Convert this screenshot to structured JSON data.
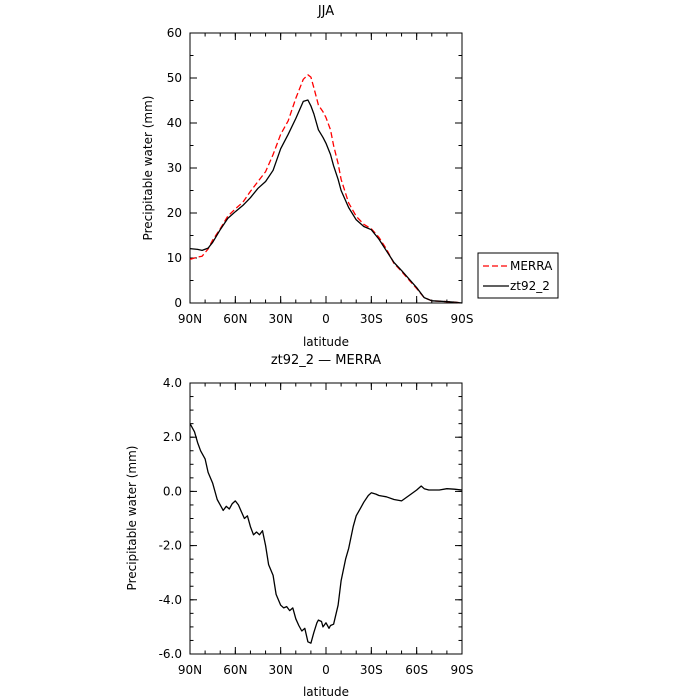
{
  "chart_data": [
    {
      "type": "line",
      "title": "JJA",
      "xlabel": "latitude",
      "ylabel": "Precipitable water (mm)",
      "xlim": [
        90,
        -90
      ],
      "ylim": [
        0,
        60
      ],
      "x_ticks": [
        {
          "value": 90,
          "label": "90N"
        },
        {
          "value": 60,
          "label": "60N"
        },
        {
          "value": 30,
          "label": "30N"
        },
        {
          "value": 0,
          "label": "0"
        },
        {
          "value": -30,
          "label": "30S"
        },
        {
          "value": -60,
          "label": "60S"
        },
        {
          "value": -90,
          "label": "90S"
        }
      ],
      "y_ticks": [
        {
          "value": 0,
          "label": "0"
        },
        {
          "value": 10,
          "label": "10"
        },
        {
          "value": 20,
          "label": "20"
        },
        {
          "value": 30,
          "label": "30"
        },
        {
          "value": 40,
          "label": "40"
        },
        {
          "value": 50,
          "label": "50"
        },
        {
          "value": 60,
          "label": "60"
        }
      ],
      "legend": {
        "placement": "right"
      },
      "series": [
        {
          "name": "MERRA",
          "color": "#ff0000",
          "dash": "dashed",
          "x": [
            90,
            85,
            82,
            78,
            75,
            70,
            65,
            60,
            55,
            50,
            45,
            40,
            35,
            30,
            25,
            20,
            15,
            12,
            10,
            8,
            5,
            2,
            0,
            -3,
            -5,
            -8,
            -10,
            -15,
            -20,
            -25,
            -30,
            -35,
            -40,
            -45,
            -50,
            -55,
            -60,
            -65,
            -70,
            -75,
            -80,
            -85,
            -90
          ],
          "y": [
            9.7,
            10.2,
            10.4,
            12,
            14,
            16.5,
            19.3,
            20.9,
            22.4,
            24.8,
            27,
            29.2,
            33,
            37.5,
            40.5,
            45.5,
            49.7,
            50.7,
            50.2,
            47.8,
            44,
            42.5,
            41.2,
            38.5,
            35,
            31,
            27.5,
            22.2,
            19.3,
            17.5,
            16.5,
            14.6,
            12,
            8.8,
            7,
            5.1,
            3.2,
            1.2,
            0.5,
            0.4,
            0.3,
            0.2,
            0.0
          ]
        },
        {
          "name": "zt92_2",
          "color": "#000000",
          "dash": "solid",
          "x": [
            90,
            85,
            82,
            78,
            75,
            70,
            65,
            60,
            55,
            50,
            45,
            40,
            35,
            30,
            25,
            20,
            15,
            12,
            10,
            8,
            5,
            2,
            0,
            -3,
            -5,
            -8,
            -10,
            -15,
            -20,
            -25,
            -30,
            -35,
            -40,
            -45,
            -50,
            -55,
            -60,
            -65,
            -70,
            -75,
            -80,
            -85,
            -90
          ],
          "y": [
            12.1,
            11.9,
            11.7,
            12.2,
            13.5,
            16.3,
            18.8,
            20.3,
            21.7,
            23.4,
            25.5,
            27,
            29.5,
            34.3,
            37.5,
            41,
            44.8,
            45.1,
            43.8,
            42,
            38.5,
            36.8,
            35.5,
            33,
            30.5,
            27.5,
            25,
            21.2,
            18.5,
            17,
            16.3,
            14.2,
            11.6,
            9,
            7.2,
            5.3,
            3.4,
            1.2,
            0.5,
            0.4,
            0.3,
            0.2,
            0.0
          ]
        }
      ]
    },
    {
      "type": "line",
      "title": "zt92_2 — MERRA",
      "xlabel": "latitude",
      "ylabel": "Precipitable water (mm)",
      "xlim": [
        90,
        -90
      ],
      "ylim": [
        -6,
        4
      ],
      "x_ticks": [
        {
          "value": 90,
          "label": "90N"
        },
        {
          "value": 60,
          "label": "60N"
        },
        {
          "value": 30,
          "label": "30N"
        },
        {
          "value": 0,
          "label": "0"
        },
        {
          "value": -30,
          "label": "30S"
        },
        {
          "value": -60,
          "label": "60S"
        },
        {
          "value": -90,
          "label": "90S"
        }
      ],
      "y_ticks": [
        {
          "value": -6,
          "label": "-6.0"
        },
        {
          "value": -4,
          "label": "-4.0"
        },
        {
          "value": -2,
          "label": "-2.0"
        },
        {
          "value": 0,
          "label": "0.0"
        },
        {
          "value": 2,
          "label": "2.0"
        },
        {
          "value": 4,
          "label": "4.0"
        }
      ],
      "series": [
        {
          "color": "#000000",
          "dash": "solid",
          "x": [
            90,
            87,
            85,
            83,
            80,
            78,
            75,
            72,
            70,
            68,
            66,
            64,
            62,
            60,
            58,
            56,
            54,
            52,
            50,
            48,
            46,
            44,
            42,
            40,
            38,
            35,
            33,
            30,
            28,
            26,
            24,
            22,
            20,
            18,
            16,
            14,
            12,
            10,
            8,
            6,
            5,
            3,
            2,
            0,
            -2,
            -3,
            -5,
            -8,
            -10,
            -13,
            -15,
            -18,
            -20,
            -23,
            -25,
            -28,
            -30,
            -33,
            -35,
            -40,
            -45,
            -50,
            -55,
            -60,
            -63,
            -65,
            -68,
            -70,
            -75,
            -80,
            -85,
            -90
          ],
          "y": [
            2.5,
            2.2,
            1.8,
            1.5,
            1.2,
            0.7,
            0.3,
            -0.3,
            -0.5,
            -0.7,
            -0.55,
            -0.65,
            -0.45,
            -0.35,
            -0.5,
            -0.75,
            -1.0,
            -0.9,
            -1.3,
            -1.6,
            -1.5,
            -1.6,
            -1.45,
            -2.0,
            -2.7,
            -3.1,
            -3.8,
            -4.2,
            -4.3,
            -4.25,
            -4.4,
            -4.3,
            -4.7,
            -4.95,
            -5.15,
            -5.05,
            -5.55,
            -5.6,
            -5.2,
            -4.85,
            -4.75,
            -4.8,
            -5.0,
            -4.85,
            -5.05,
            -4.95,
            -4.9,
            -4.2,
            -3.3,
            -2.5,
            -2.1,
            -1.3,
            -0.9,
            -0.6,
            -0.4,
            -0.15,
            -0.05,
            -0.1,
            -0.15,
            -0.2,
            -0.3,
            -0.35,
            -0.15,
            0.05,
            0.2,
            0.1,
            0.05,
            0.05,
            0.05,
            0.1,
            0.08,
            0.05
          ]
        }
      ]
    }
  ]
}
